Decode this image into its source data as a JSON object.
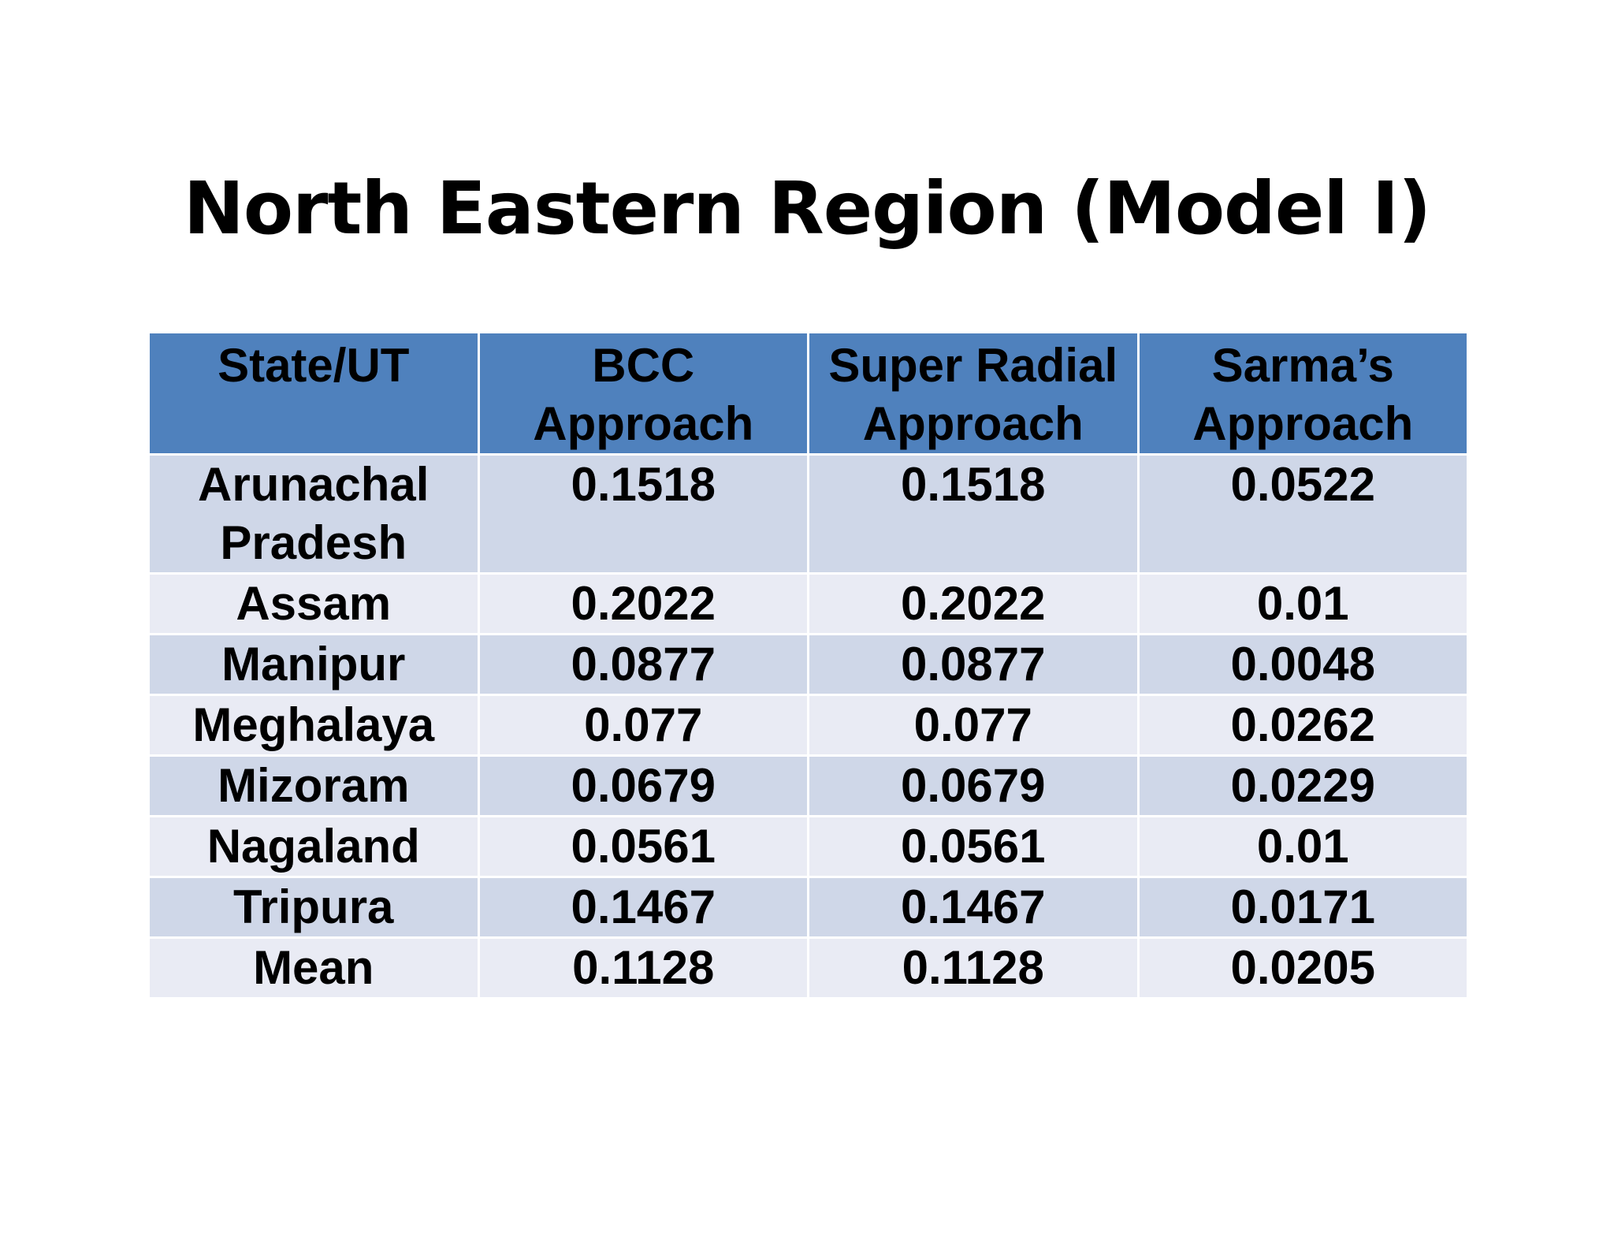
{
  "slide": {
    "title": "North Eastern Region (Model I)"
  },
  "table": {
    "headers": [
      [
        "State/UT"
      ],
      [
        "BCC",
        "Approach"
      ],
      [
        "Super Radial",
        "Approach"
      ],
      [
        "Sarma’s",
        "Approach"
      ]
    ],
    "rows": [
      {
        "state": [
          "Arunachal",
          "Pradesh"
        ],
        "bcc": "0.1518",
        "super_radial": "0.1518",
        "sarma": "0.0522"
      },
      {
        "state": [
          "Assam"
        ],
        "bcc": "0.2022",
        "super_radial": "0.2022",
        "sarma": "0.01"
      },
      {
        "state": [
          "Manipur"
        ],
        "bcc": "0.0877",
        "super_radial": "0.0877",
        "sarma": "0.0048"
      },
      {
        "state": [
          "Meghalaya"
        ],
        "bcc": "0.077",
        "super_radial": "0.077",
        "sarma": "0.0262"
      },
      {
        "state": [
          "Mizoram"
        ],
        "bcc": "0.0679",
        "super_radial": "0.0679",
        "sarma": "0.0229"
      },
      {
        "state": [
          "Nagaland"
        ],
        "bcc": "0.0561",
        "super_radial": "0.0561",
        "sarma": "0.01"
      },
      {
        "state": [
          "Tripura"
        ],
        "bcc": "0.1467",
        "super_radial": "0.1467",
        "sarma": "0.0171"
      },
      {
        "state": [
          "Mean"
        ],
        "bcc": "0.1128",
        "super_radial": "0.1128",
        "sarma": "0.0205"
      }
    ],
    "colors": {
      "header_bg": "#4f81bd",
      "row_odd_bg": "#cfd7e8",
      "row_even_bg": "#e9ebf4"
    }
  }
}
